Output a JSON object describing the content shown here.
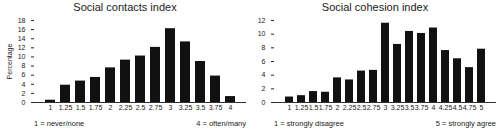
{
  "chart_data": [
    {
      "type": "bar",
      "title": "Social contacts index",
      "y_label": "Percentage",
      "categories": [
        "1",
        "1.25",
        "1.5",
        "1.75",
        "2",
        "2.25",
        "2.5",
        "2.75",
        "3",
        "3.25",
        "3.5",
        "3.75",
        "4"
      ],
      "values": [
        0.5,
        3.8,
        4.7,
        5.5,
        7.6,
        9.3,
        10.2,
        12.1,
        16.2,
        13.3,
        9.0,
        5.8,
        1.3
      ],
      "color": "#111111",
      "ylim": [
        0,
        18
      ],
      "yticks": [
        0,
        2,
        4,
        6,
        8,
        10,
        12,
        14,
        16,
        18
      ],
      "annotations": [
        "1 = never/none",
        "4 = often/many"
      ]
    },
    {
      "type": "bar",
      "title": "Social cohesion index",
      "categories": [
        "1",
        "1.25",
        "1.5",
        "1.75",
        "2",
        "2.25",
        "2.5",
        "2.75",
        "3",
        "3.25",
        "3.5",
        "3.75",
        "4",
        "4.25",
        "4.5",
        "4.75",
        "5"
      ],
      "values": [
        0.8,
        1.0,
        1.6,
        1.5,
        3.6,
        3.3,
        4.6,
        4.7,
        11.6,
        8.5,
        10.4,
        10.1,
        10.9,
        7.6,
        6.4,
        5.1,
        7.8
      ],
      "color": "#111111",
      "ylim": [
        0,
        12
      ],
      "yticks": [
        0,
        2,
        4,
        6,
        8,
        10,
        12
      ],
      "annotations": [
        "1 = strongly disagree",
        "5 = strongly agree"
      ]
    }
  ]
}
